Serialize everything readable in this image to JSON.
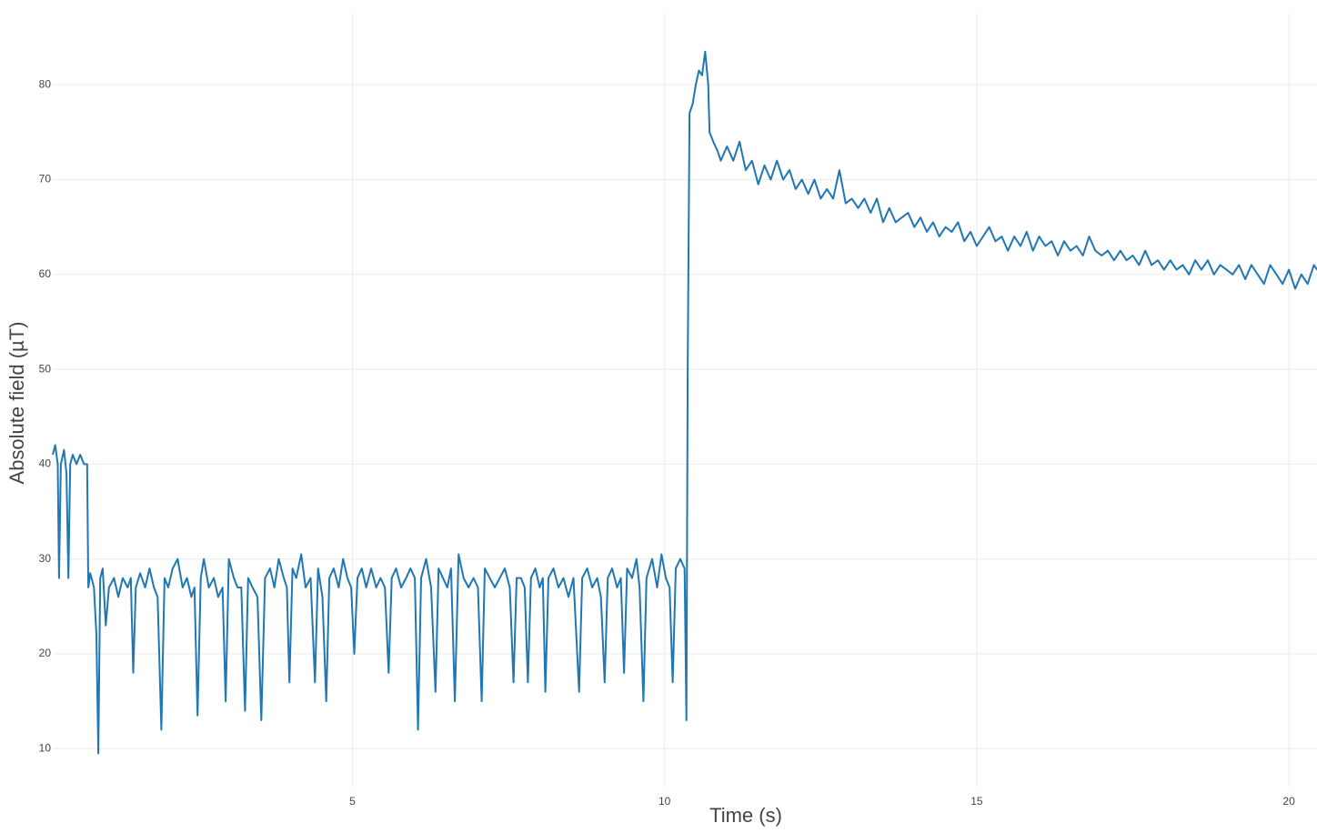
{
  "chart_data": {
    "type": "line",
    "xlabel": "Time (s)",
    "ylabel": "Absolute field (µT)",
    "color": "#1f77b4",
    "grid": true,
    "xlim": [
      0.2,
      20.45
    ],
    "xticks": [
      5,
      10,
      15,
      20
    ],
    "ylim": [
      6,
      87.5
    ],
    "yticks": [
      10,
      20,
      30,
      40,
      50,
      60,
      70,
      80
    ],
    "x": [
      0.2,
      0.24,
      0.28,
      0.3,
      0.33,
      0.38,
      0.42,
      0.45,
      0.48,
      0.52,
      0.58,
      0.64,
      0.7,
      0.75,
      0.77,
      0.8,
      0.86,
      0.9,
      0.93,
      0.96,
      1.0,
      1.05,
      1.1,
      1.18,
      1.25,
      1.32,
      1.4,
      1.45,
      1.49,
      1.53,
      1.6,
      1.68,
      1.75,
      1.82,
      1.88,
      1.94,
      1.99,
      2.05,
      2.12,
      2.2,
      2.28,
      2.35,
      2.42,
      2.47,
      2.52,
      2.57,
      2.62,
      2.7,
      2.78,
      2.85,
      2.92,
      2.97,
      3.02,
      3.1,
      3.16,
      3.22,
      3.28,
      3.33,
      3.4,
      3.48,
      3.54,
      3.6,
      3.68,
      3.75,
      3.82,
      3.9,
      3.95,
      3.99,
      4.04,
      4.1,
      4.18,
      4.25,
      4.33,
      4.4,
      4.45,
      4.52,
      4.58,
      4.63,
      4.7,
      4.78,
      4.85,
      4.92,
      4.98,
      5.03,
      5.08,
      5.15,
      5.22,
      5.3,
      5.38,
      5.45,
      5.52,
      5.58,
      5.63,
      5.7,
      5.78,
      5.86,
      5.93,
      6.0,
      6.05,
      6.1,
      6.18,
      6.26,
      6.33,
      6.38,
      6.45,
      6.52,
      6.58,
      6.64,
      6.7,
      6.78,
      6.86,
      6.94,
      7.01,
      7.07,
      7.12,
      7.2,
      7.28,
      7.36,
      7.44,
      7.52,
      7.58,
      7.63,
      7.7,
      7.76,
      7.81,
      7.86,
      7.93,
      8.0,
      8.05,
      8.09,
      8.14,
      8.22,
      8.3,
      8.38,
      8.46,
      8.54,
      8.63,
      8.68,
      8.76,
      8.84,
      8.92,
      8.98,
      9.04,
      9.09,
      9.16,
      9.24,
      9.3,
      9.35,
      9.4,
      9.48,
      9.55,
      9.6,
      9.66,
      9.71,
      9.8,
      9.88,
      9.95,
      10.02,
      10.08,
      10.13,
      10.18,
      10.25,
      10.32,
      10.35,
      10.37,
      10.4,
      10.45,
      10.5,
      10.55,
      10.6,
      10.65,
      10.7,
      10.72,
      10.78,
      10.85,
      10.9,
      11.0,
      11.1,
      11.2,
      11.3,
      11.4,
      11.5,
      11.6,
      11.7,
      11.8,
      11.9,
      12.0,
      12.1,
      12.2,
      12.3,
      12.4,
      12.5,
      12.6,
      12.7,
      12.8,
      12.9,
      13.0,
      13.1,
      13.2,
      13.3,
      13.4,
      13.5,
      13.6,
      13.7,
      13.8,
      13.9,
      14.0,
      14.1,
      14.2,
      14.3,
      14.4,
      14.5,
      14.6,
      14.7,
      14.8,
      14.9,
      15.0,
      15.1,
      15.2,
      15.3,
      15.4,
      15.5,
      15.6,
      15.7,
      15.8,
      15.9,
      16.0,
      16.1,
      16.2,
      16.3,
      16.4,
      16.5,
      16.6,
      16.7,
      16.8,
      16.9,
      17.0,
      17.1,
      17.2,
      17.3,
      17.4,
      17.5,
      17.6,
      17.7,
      17.8,
      17.9,
      18.0,
      18.1,
      18.2,
      18.3,
      18.4,
      18.5,
      18.6,
      18.7,
      18.8,
      18.9,
      19.0,
      19.1,
      19.2,
      19.3,
      19.4,
      19.5,
      19.6,
      19.7,
      19.8,
      19.9,
      20.0,
      20.1,
      20.2,
      20.3,
      20.4,
      20.45
    ],
    "values": [
      41,
      42,
      40,
      28,
      40,
      41.5,
      39,
      28,
      40,
      41,
      40,
      41,
      40,
      40,
      27,
      28.5,
      27,
      22,
      9.5,
      28,
      29,
      23,
      27,
      28,
      26,
      28,
      27,
      28,
      18,
      27,
      28.5,
      27,
      29,
      27,
      26,
      12,
      28,
      27,
      29,
      30,
      27,
      28,
      26,
      27,
      13.5,
      28,
      30,
      27,
      28,
      26,
      27,
      15,
      30,
      28,
      27,
      27,
      14,
      28,
      27,
      26,
      13,
      28,
      29,
      27,
      30,
      28,
      27,
      17,
      29,
      28,
      30.5,
      27,
      28,
      17,
      29,
      26,
      15,
      28,
      29,
      27,
      30,
      28,
      27,
      20,
      28,
      29,
      27,
      29,
      27,
      28,
      27,
      18,
      28,
      29,
      27,
      28,
      29,
      28,
      12,
      28,
      30,
      27,
      16,
      29,
      28,
      27,
      29,
      15,
      30.5,
      28,
      27,
      28,
      27,
      15,
      29,
      28,
      27,
      28,
      29,
      27,
      17,
      28,
      28,
      27,
      17,
      28,
      29,
      27,
      28,
      16,
      28,
      29,
      27,
      28,
      26,
      28,
      16,
      28,
      29,
      27,
      28,
      26,
      17,
      28,
      29,
      27,
      28,
      18,
      29,
      28,
      30,
      27,
      15,
      28,
      30,
      27,
      30.5,
      28,
      27,
      17,
      29,
      30,
      29,
      13,
      50,
      77,
      78,
      80,
      81.5,
      81,
      83.5,
      80,
      75,
      74,
      73,
      72,
      73.5,
      72,
      74,
      71,
      72,
      69.5,
      71.5,
      70,
      72,
      70,
      71,
      69,
      70,
      68.5,
      70,
      68,
      69,
      68,
      71,
      67.5,
      68,
      67,
      68,
      66.5,
      68,
      65.5,
      67,
      65.5,
      66,
      66.5,
      65,
      66,
      64.5,
      65.5,
      64,
      65,
      64.5,
      65.5,
      63.5,
      64.5,
      63,
      64,
      65,
      63.5,
      64,
      62.5,
      64,
      63,
      64.5,
      62.5,
      64,
      63,
      63.5,
      62,
      63.5,
      62.5,
      63,
      62,
      64,
      62.5,
      62,
      62.5,
      61.5,
      62.5,
      61.5,
      62,
      61,
      62.5,
      61,
      61.5,
      60.5,
      61.5,
      60.5,
      61,
      60,
      61.5,
      60.5,
      61.5,
      60,
      61,
      60.5,
      60,
      61,
      59.5,
      61,
      60,
      59,
      61,
      60,
      59,
      60.5,
      58.5,
      60,
      59,
      61,
      60.5
    ]
  }
}
